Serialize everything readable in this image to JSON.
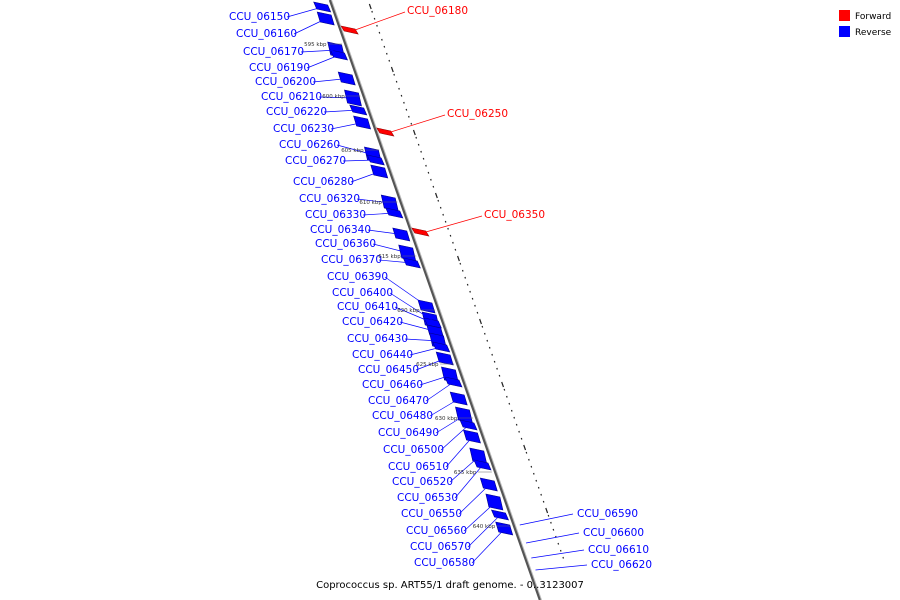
{
  "caption": "Coprococcus sp. ART55/1 draft genome. - 0..3123007",
  "legend": [
    {
      "label": "Forward",
      "color": "#ff0000"
    },
    {
      "label": "Reverse",
      "color": "#0000ff"
    }
  ],
  "colors": {
    "forward": "#ff0000",
    "reverse": "#0000ff",
    "axis": "#888888"
  },
  "scale_marks": [
    "595 kbp",
    "600 kbp",
    "605 kbp",
    "610 kbp",
    "615 kbp",
    "620 kbp",
    "625 kbp",
    "630 kbp",
    "635 kbp",
    "640 kbp"
  ],
  "genes_forward": [
    "CCU_06180",
    "CCU_06250",
    "CCU_06350"
  ],
  "genes_reverse_left": [
    "CCU_06150",
    "CCU_06160",
    "CCU_06170",
    "CCU_06190",
    "CCU_06200",
    "CCU_06210",
    "CCU_06220",
    "CCU_06230",
    "CCU_06260",
    "CCU_06270",
    "CCU_06280",
    "CCU_06320",
    "CCU_06330",
    "CCU_06340",
    "CCU_06360",
    "CCU_06370",
    "CCU_06390",
    "CCU_06400",
    "CCU_06410",
    "CCU_06420",
    "CCU_06430",
    "CCU_06440",
    "CCU_06450",
    "CCU_06460",
    "CCU_06470",
    "CCU_06480",
    "CCU_06490",
    "CCU_06500",
    "CCU_06510",
    "CCU_06520",
    "CCU_06530",
    "CCU_06550",
    "CCU_06560",
    "CCU_06570",
    "CCU_06580"
  ],
  "genes_reverse_right": [
    "CCU_06590",
    "CCU_06600",
    "CCU_06610",
    "CCU_06620"
  ]
}
